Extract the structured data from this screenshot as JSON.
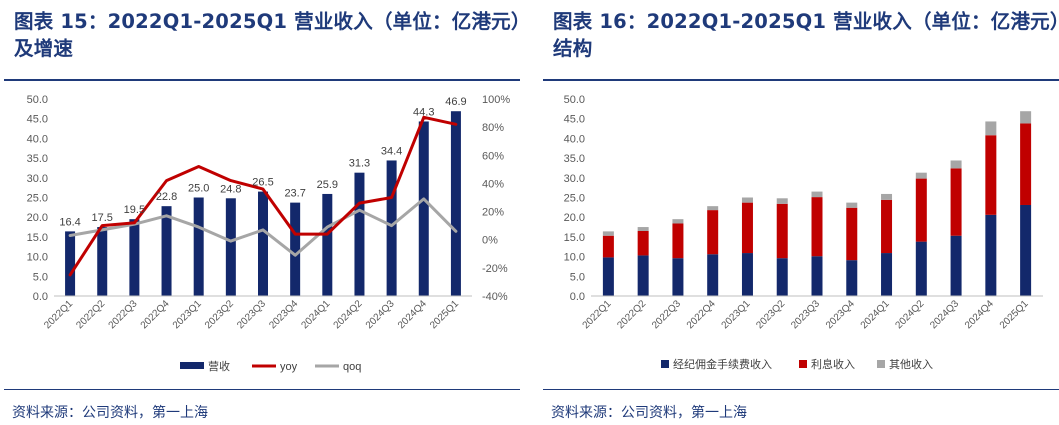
{
  "chart_data": [
    {
      "type": "bar",
      "title": "图表 15：2022Q1-2025Q1 营业收入（单位：亿港元）及增速",
      "categories": [
        "2022Q1",
        "2022Q2",
        "2022Q3",
        "2022Q4",
        "2023Q1",
        "2023Q2",
        "2023Q3",
        "2023Q4",
        "2024Q1",
        "2024Q2",
        "2024Q3",
        "2024Q4",
        "2025Q1"
      ],
      "bar_series": {
        "name": "营收",
        "values": [
          16.4,
          17.5,
          19.5,
          22.8,
          25.0,
          24.8,
          26.5,
          23.7,
          25.9,
          31.3,
          34.4,
          44.3,
          46.9
        ],
        "color": "#13286b"
      },
      "line_series": [
        {
          "name": "yoy",
          "color": "#c00000",
          "values": [
            -0.25,
            0.1,
            0.12,
            0.42,
            0.52,
            0.42,
            0.36,
            0.04,
            0.04,
            0.26,
            0.3,
            0.87,
            0.82
          ]
        },
        {
          "name": "qoq",
          "color": "#a6a6a6",
          "values": [
            0.03,
            0.07,
            0.11,
            0.17,
            0.09,
            -0.01,
            0.07,
            -0.11,
            0.09,
            0.21,
            0.1,
            0.29,
            0.06
          ]
        }
      ],
      "data_labels": [
        "16.4",
        "17.5",
        "19.5",
        "22.8",
        "25.0",
        "24.8",
        "26.5",
        "23.7",
        "25.9",
        "31.3",
        "34.4",
        "44.3",
        "46.9"
      ],
      "y_left": {
        "min": 0,
        "max": 50,
        "ticks": [
          "0.0",
          "5.0",
          "10.0",
          "15.0",
          "20.0",
          "25.0",
          "30.0",
          "35.0",
          "40.0",
          "45.0",
          "50.0"
        ]
      },
      "y_right": {
        "min": -0.4,
        "max": 1.0,
        "ticks": [
          "-40%",
          "-20%",
          "0%",
          "20%",
          "40%",
          "60%",
          "80%",
          "100%"
        ]
      },
      "legend": {
        "position": "bottom",
        "items": [
          "营收",
          "yoy",
          "qoq"
        ]
      },
      "grid": false,
      "source": "资料来源：公司资料，第一上海"
    },
    {
      "type": "bar",
      "stacked": true,
      "title": "图表 16：2022Q1-2025Q1 营业收入（单位：亿港元）结构",
      "categories": [
        "2022Q1",
        "2022Q2",
        "2022Q3",
        "2022Q4",
        "2023Q1",
        "2023Q2",
        "2023Q3",
        "2023Q4",
        "2024Q1",
        "2024Q2",
        "2024Q3",
        "2024Q4",
        "2025Q1"
      ],
      "series": [
        {
          "name": "经纪佣金手续费收入",
          "color": "#13286b",
          "values": [
            9.8,
            10.3,
            9.6,
            10.6,
            10.9,
            9.6,
            10.1,
            9.1,
            10.9,
            13.8,
            15.3,
            20.6,
            23.1
          ]
        },
        {
          "name": "利息收入",
          "color": "#c00000",
          "values": [
            5.5,
            6.2,
            8.8,
            11.2,
            12.8,
            13.8,
            15.0,
            13.3,
            13.5,
            16.0,
            17.1,
            20.2,
            20.7
          ]
        },
        {
          "name": "其他收入",
          "color": "#a6a6a6",
          "values": [
            1.1,
            1.0,
            1.1,
            1.0,
            1.3,
            1.4,
            1.4,
            1.3,
            1.5,
            1.5,
            2.0,
            3.5,
            3.1
          ]
        }
      ],
      "y": {
        "min": 0,
        "max": 50,
        "ticks": [
          "0.0",
          "5.0",
          "10.0",
          "15.0",
          "20.0",
          "25.0",
          "30.0",
          "35.0",
          "40.0",
          "45.0",
          "50.0"
        ]
      },
      "legend": {
        "position": "bottom",
        "items": [
          "经纪佣金手续费收入",
          "利息收入",
          "其他收入"
        ]
      },
      "grid": false,
      "source": "资料来源：公司资料，第一上海"
    }
  ]
}
